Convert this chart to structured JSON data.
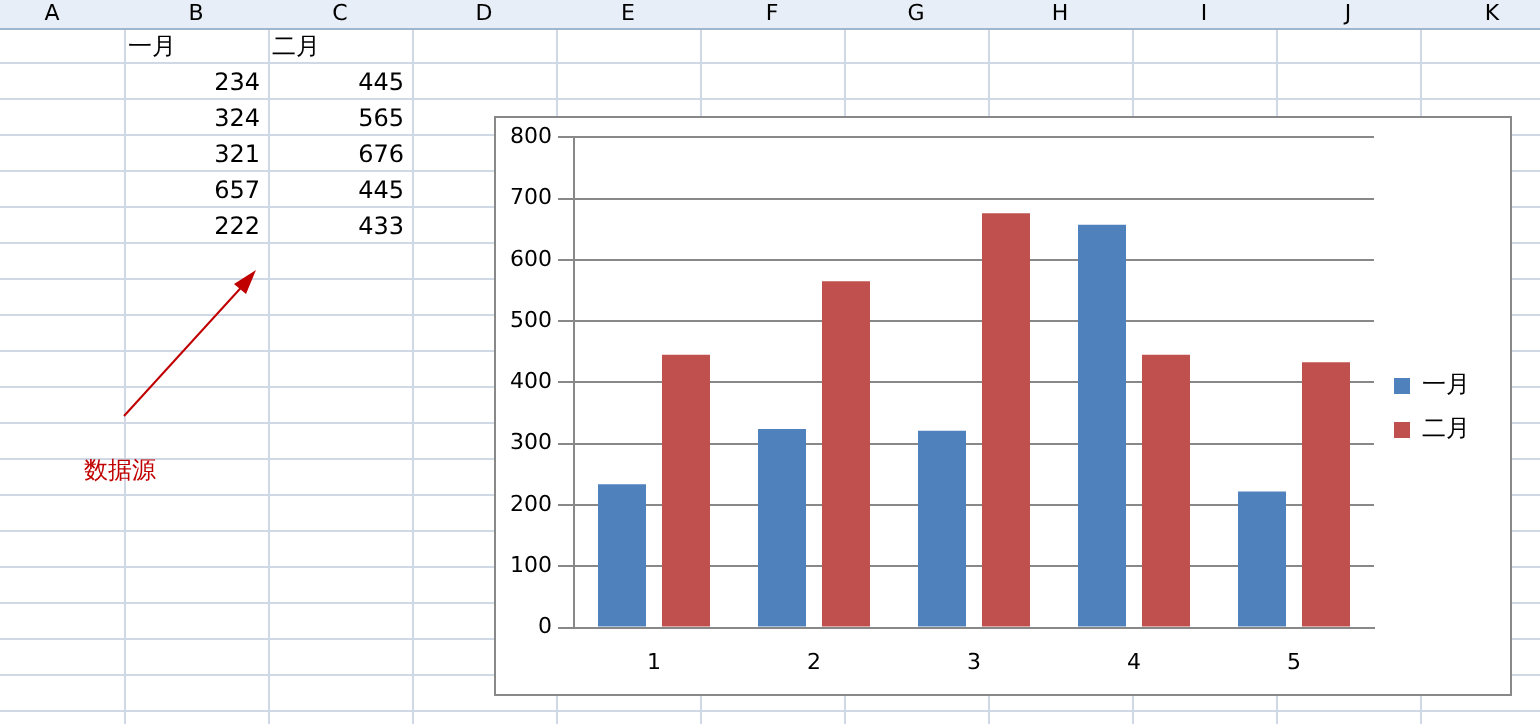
{
  "chart_data": [
    {
      "type": "other",
      "annotations": [
        "A",
        "B",
        "C",
        "D",
        "E",
        "F",
        "G",
        "H",
        "I",
        "J",
        "K",
        "一月",
        "二月",
        "234",
        "445",
        "324",
        "565",
        "321",
        "676",
        "657",
        "445",
        "222",
        "433",
        "数据源"
      ]
    },
    {
      "type": "bar",
      "categories": [
        "1",
        "2",
        "3",
        "4",
        "5"
      ],
      "series": [
        {
          "name": "一月",
          "color": "#4f81bd",
          "values": [
            234,
            324,
            321,
            657,
            222
          ]
        },
        {
          "name": "二月",
          "color": "#c0504d",
          "values": [
            445,
            565,
            676,
            445,
            433
          ]
        }
      ],
      "ylim": [
        0,
        800
      ],
      "yticks": [
        0,
        100,
        200,
        300,
        400,
        500,
        600,
        700,
        800
      ],
      "grid": "y",
      "legend": "right"
    }
  ]
}
